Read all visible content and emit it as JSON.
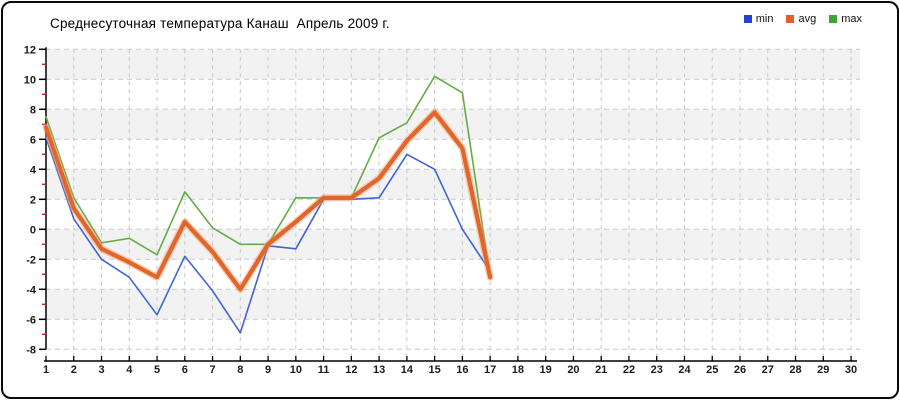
{
  "title": "Среднесуточная температура Канаш  Апрель 2009 г.",
  "legend": [
    {
      "label": "min",
      "color": "#2243cc"
    },
    {
      "label": "avg",
      "color": "#e2602a"
    },
    {
      "label": "max",
      "color": "#3ba32e"
    }
  ],
  "chart_data": {
    "type": "line",
    "title": "Среднесуточная температура Канаш  Апрель 2009 г.",
    "xlabel": "",
    "ylabel": "",
    "x": [
      1,
      2,
      3,
      4,
      5,
      6,
      7,
      8,
      9,
      10,
      11,
      12,
      13,
      14,
      15,
      16,
      17
    ],
    "x_axis": {
      "min": 1,
      "max": 30,
      "tick_step": 1
    },
    "y_axis": {
      "min": -8,
      "max": 12,
      "tick_step": 2,
      "minor_tick_step": 1
    },
    "x_ticks": [
      1,
      2,
      3,
      4,
      5,
      6,
      7,
      8,
      9,
      10,
      11,
      12,
      13,
      14,
      15,
      16,
      17,
      18,
      19,
      20,
      21,
      22,
      23,
      24,
      25,
      26,
      27,
      28,
      29,
      30
    ],
    "y_ticks": [
      12,
      10,
      8,
      6,
      4,
      2,
      0,
      -2,
      -4,
      -6,
      -8
    ],
    "y_minor_ticks": [
      11,
      9,
      7,
      5,
      3,
      1,
      -1,
      -3,
      -5,
      -7
    ],
    "grid": "dashed",
    "alternating_bands": true,
    "legend_position": "top-right",
    "series": [
      {
        "name": "min",
        "color": "#4063d6",
        "width": 1.6,
        "values": [
          6.1,
          0.7,
          -2.0,
          -3.2,
          -5.7,
          -1.8,
          -4.1,
          -6.9,
          -1.1,
          -1.3,
          2.0,
          2.0,
          2.1,
          5.0,
          4.0,
          0.0,
          -2.8
        ]
      },
      {
        "name": "avg",
        "color": "#e2652c",
        "halo_color": "#f4a066",
        "width": 4.2,
        "values": [
          6.8,
          1.4,
          -1.3,
          -2.2,
          -3.2,
          0.5,
          -1.5,
          -4.0,
          -1.0,
          0.5,
          2.1,
          2.1,
          3.4,
          5.9,
          7.8,
          5.4,
          -3.2
        ]
      },
      {
        "name": "max",
        "color": "#64ad45",
        "width": 1.6,
        "values": [
          7.5,
          2.1,
          -0.9,
          -0.6,
          -1.7,
          2.5,
          0.1,
          -1.0,
          -1.0,
          2.1,
          2.1,
          2.1,
          6.1,
          7.1,
          10.2,
          9.1,
          -3.2
        ]
      }
    ],
    "colors": {
      "band_gray": "#f2f2f2",
      "gridline": "#c9c9c9",
      "axis": "#000000",
      "minor_tick_red": "#cc2020",
      "tick_label": "#1a1a1a"
    }
  }
}
